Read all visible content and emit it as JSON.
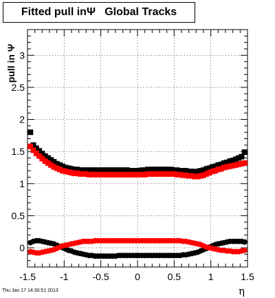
{
  "chart_data": {
    "type": "scatter",
    "title": "Fitted pull inΨ   Global Tracks",
    "xlabel": "η",
    "ylabel": "pull in  Ψ",
    "xlim": [
      -1.5,
      1.5
    ],
    "ylim": [
      -0.3,
      3.4
    ],
    "xticks": [
      "-1.5",
      "-1",
      "-0.5",
      "0",
      "0.5",
      "1",
      "1.5"
    ],
    "yticks": [
      "0",
      "0.5",
      "1",
      "1.5",
      "2",
      "2.5",
      "3"
    ],
    "grid": true,
    "series": [
      {
        "color": "#000000",
        "marker": "square",
        "x": [
          -1.46,
          -1.42,
          -1.38,
          -1.34,
          -1.3,
          -1.26,
          -1.22,
          -1.18,
          -1.14,
          -1.1,
          -1.06,
          -1.02,
          -0.98,
          -0.94,
          -0.9,
          -0.86,
          -0.82,
          -0.78,
          -0.74,
          -0.7,
          -0.66,
          -0.62,
          -0.58,
          -0.54,
          -0.5,
          -0.46,
          -0.42,
          -0.38,
          -0.34,
          -0.3,
          -0.26,
          -0.22,
          -0.18,
          -0.14,
          -0.1,
          -0.06,
          -0.02,
          0.02,
          0.06,
          0.1,
          0.14,
          0.18,
          0.22,
          0.26,
          0.3,
          0.34,
          0.38,
          0.42,
          0.46,
          0.5,
          0.54,
          0.58,
          0.62,
          0.66,
          0.7,
          0.74,
          0.78,
          0.82,
          0.86,
          0.9,
          0.94,
          0.98,
          1.02,
          1.06,
          1.1,
          1.14,
          1.18,
          1.22,
          1.26,
          1.3,
          1.34,
          1.38,
          1.42,
          1.46
        ],
        "y": [
          1.8,
          1.6,
          1.55,
          1.51,
          1.47,
          1.43,
          1.4,
          1.37,
          1.34,
          1.31,
          1.29,
          1.27,
          1.25,
          1.24,
          1.23,
          1.22,
          1.22,
          1.21,
          1.21,
          1.21,
          1.21,
          1.21,
          1.21,
          1.21,
          1.21,
          1.21,
          1.21,
          1.21,
          1.21,
          1.21,
          1.21,
          1.21,
          1.21,
          1.21,
          1.2,
          1.2,
          1.2,
          1.2,
          1.21,
          1.21,
          1.22,
          1.22,
          1.22,
          1.22,
          1.22,
          1.22,
          1.22,
          1.22,
          1.22,
          1.21,
          1.21,
          1.2,
          1.2,
          1.2,
          1.19,
          1.19,
          1.18,
          1.19,
          1.2,
          1.21,
          1.23,
          1.24,
          1.26,
          1.27,
          1.29,
          1.3,
          1.32,
          1.33,
          1.35,
          1.36,
          1.38,
          1.4,
          1.42,
          1.49
        ]
      },
      {
        "color": "#ff0000",
        "marker": "square",
        "x": [
          -1.46,
          -1.42,
          -1.38,
          -1.34,
          -1.3,
          -1.26,
          -1.22,
          -1.18,
          -1.14,
          -1.1,
          -1.06,
          -1.02,
          -0.98,
          -0.94,
          -0.9,
          -0.86,
          -0.82,
          -0.78,
          -0.74,
          -0.7,
          -0.66,
          -0.62,
          -0.58,
          -0.54,
          -0.5,
          -0.46,
          -0.42,
          -0.38,
          -0.34,
          -0.3,
          -0.26,
          -0.22,
          -0.18,
          -0.14,
          -0.1,
          -0.06,
          -0.02,
          0.02,
          0.06,
          0.1,
          0.14,
          0.18,
          0.22,
          0.26,
          0.3,
          0.34,
          0.38,
          0.42,
          0.46,
          0.5,
          0.54,
          0.58,
          0.62,
          0.66,
          0.7,
          0.74,
          0.78,
          0.82,
          0.86,
          0.9,
          0.94,
          0.98,
          1.02,
          1.06,
          1.1,
          1.14,
          1.18,
          1.22,
          1.26,
          1.3,
          1.34,
          1.38,
          1.42,
          1.46
        ],
        "y": [
          1.58,
          1.52,
          1.47,
          1.43,
          1.39,
          1.35,
          1.32,
          1.29,
          1.26,
          1.24,
          1.22,
          1.2,
          1.19,
          1.18,
          1.17,
          1.16,
          1.16,
          1.15,
          1.15,
          1.15,
          1.14,
          1.14,
          1.14,
          1.14,
          1.14,
          1.14,
          1.14,
          1.14,
          1.14,
          1.14,
          1.14,
          1.14,
          1.14,
          1.14,
          1.14,
          1.14,
          1.14,
          1.14,
          1.14,
          1.14,
          1.15,
          1.15,
          1.15,
          1.15,
          1.15,
          1.15,
          1.15,
          1.15,
          1.15,
          1.15,
          1.14,
          1.14,
          1.13,
          1.13,
          1.12,
          1.12,
          1.11,
          1.11,
          1.12,
          1.13,
          1.15,
          1.17,
          1.19,
          1.2,
          1.22,
          1.23,
          1.25,
          1.26,
          1.27,
          1.28,
          1.29,
          1.3,
          1.31,
          1.32
        ]
      },
      {
        "color": "#000000",
        "marker": "circle",
        "x": [
          -1.46,
          -1.42,
          -1.38,
          -1.34,
          -1.3,
          -1.26,
          -1.22,
          -1.18,
          -1.14,
          -1.1,
          -1.06,
          -1.02,
          -0.98,
          -0.94,
          -0.9,
          -0.86,
          -0.82,
          -0.78,
          -0.74,
          -0.7,
          -0.66,
          -0.62,
          -0.58,
          -0.54,
          -0.5,
          -0.46,
          -0.42,
          -0.38,
          -0.34,
          -0.3,
          -0.26,
          -0.22,
          -0.18,
          -0.14,
          -0.1,
          -0.06,
          -0.02,
          0.02,
          0.06,
          0.1,
          0.14,
          0.18,
          0.22,
          0.26,
          0.3,
          0.34,
          0.38,
          0.42,
          0.46,
          0.5,
          0.54,
          0.58,
          0.62,
          0.66,
          0.7,
          0.74,
          0.78,
          0.82,
          0.86,
          0.9,
          0.94,
          0.98,
          1.02,
          1.06,
          1.1,
          1.14,
          1.18,
          1.22,
          1.26,
          1.3,
          1.34,
          1.38,
          1.42,
          1.46
        ],
        "y": [
          0.08,
          0.1,
          0.11,
          0.11,
          0.1,
          0.09,
          0.08,
          0.07,
          0.06,
          0.04,
          0.02,
          0.0,
          -0.02,
          -0.04,
          -0.05,
          -0.07,
          -0.08,
          -0.09,
          -0.1,
          -0.11,
          -0.12,
          -0.12,
          -0.13,
          -0.13,
          -0.13,
          -0.13,
          -0.13,
          -0.13,
          -0.13,
          -0.13,
          -0.12,
          -0.12,
          -0.12,
          -0.12,
          -0.12,
          -0.12,
          -0.12,
          -0.12,
          -0.12,
          -0.12,
          -0.12,
          -0.12,
          -0.12,
          -0.12,
          -0.12,
          -0.12,
          -0.12,
          -0.12,
          -0.12,
          -0.12,
          -0.12,
          -0.12,
          -0.11,
          -0.11,
          -0.1,
          -0.09,
          -0.08,
          -0.07,
          -0.05,
          -0.03,
          -0.01,
          0.01,
          0.03,
          0.05,
          0.06,
          0.07,
          0.08,
          0.09,
          0.1,
          0.1,
          0.1,
          0.1,
          0.1,
          0.09
        ]
      },
      {
        "color": "#ff0000",
        "marker": "circle",
        "x": [
          -1.46,
          -1.42,
          -1.38,
          -1.34,
          -1.3,
          -1.26,
          -1.22,
          -1.18,
          -1.14,
          -1.1,
          -1.06,
          -1.02,
          -0.98,
          -0.94,
          -0.9,
          -0.86,
          -0.82,
          -0.78,
          -0.74,
          -0.7,
          -0.66,
          -0.62,
          -0.58,
          -0.54,
          -0.5,
          -0.46,
          -0.42,
          -0.38,
          -0.34,
          -0.3,
          -0.26,
          -0.22,
          -0.18,
          -0.14,
          -0.1,
          -0.06,
          -0.02,
          0.02,
          0.06,
          0.1,
          0.14,
          0.18,
          0.22,
          0.26,
          0.3,
          0.34,
          0.38,
          0.42,
          0.46,
          0.5,
          0.54,
          0.58,
          0.62,
          0.66,
          0.7,
          0.74,
          0.78,
          0.82,
          0.86,
          0.9,
          0.94,
          0.98,
          1.02,
          1.06,
          1.1,
          1.14,
          1.18,
          1.22,
          1.26,
          1.3,
          1.34,
          1.38,
          1.42,
          1.46
        ],
        "y": [
          -0.06,
          -0.07,
          -0.08,
          -0.08,
          -0.07,
          -0.06,
          -0.05,
          -0.04,
          -0.03,
          -0.01,
          0.01,
          0.03,
          0.04,
          0.05,
          0.06,
          0.07,
          0.08,
          0.09,
          0.1,
          0.1,
          0.1,
          0.1,
          0.11,
          0.11,
          0.11,
          0.11,
          0.11,
          0.11,
          0.11,
          0.11,
          0.11,
          0.11,
          0.11,
          0.11,
          0.11,
          0.11,
          0.11,
          0.11,
          0.11,
          0.11,
          0.11,
          0.11,
          0.11,
          0.11,
          0.11,
          0.11,
          0.11,
          0.11,
          0.11,
          0.11,
          0.11,
          0.11,
          0.1,
          0.1,
          0.09,
          0.08,
          0.07,
          0.06,
          0.05,
          0.03,
          0.01,
          0.0,
          -0.01,
          -0.02,
          -0.03,
          -0.04,
          -0.04,
          -0.05,
          -0.05,
          -0.06,
          -0.06,
          -0.06,
          -0.05,
          -0.04
        ]
      }
    ]
  },
  "footer": {
    "timestamp": "Thu Jan 17 14:30:51 2013"
  }
}
